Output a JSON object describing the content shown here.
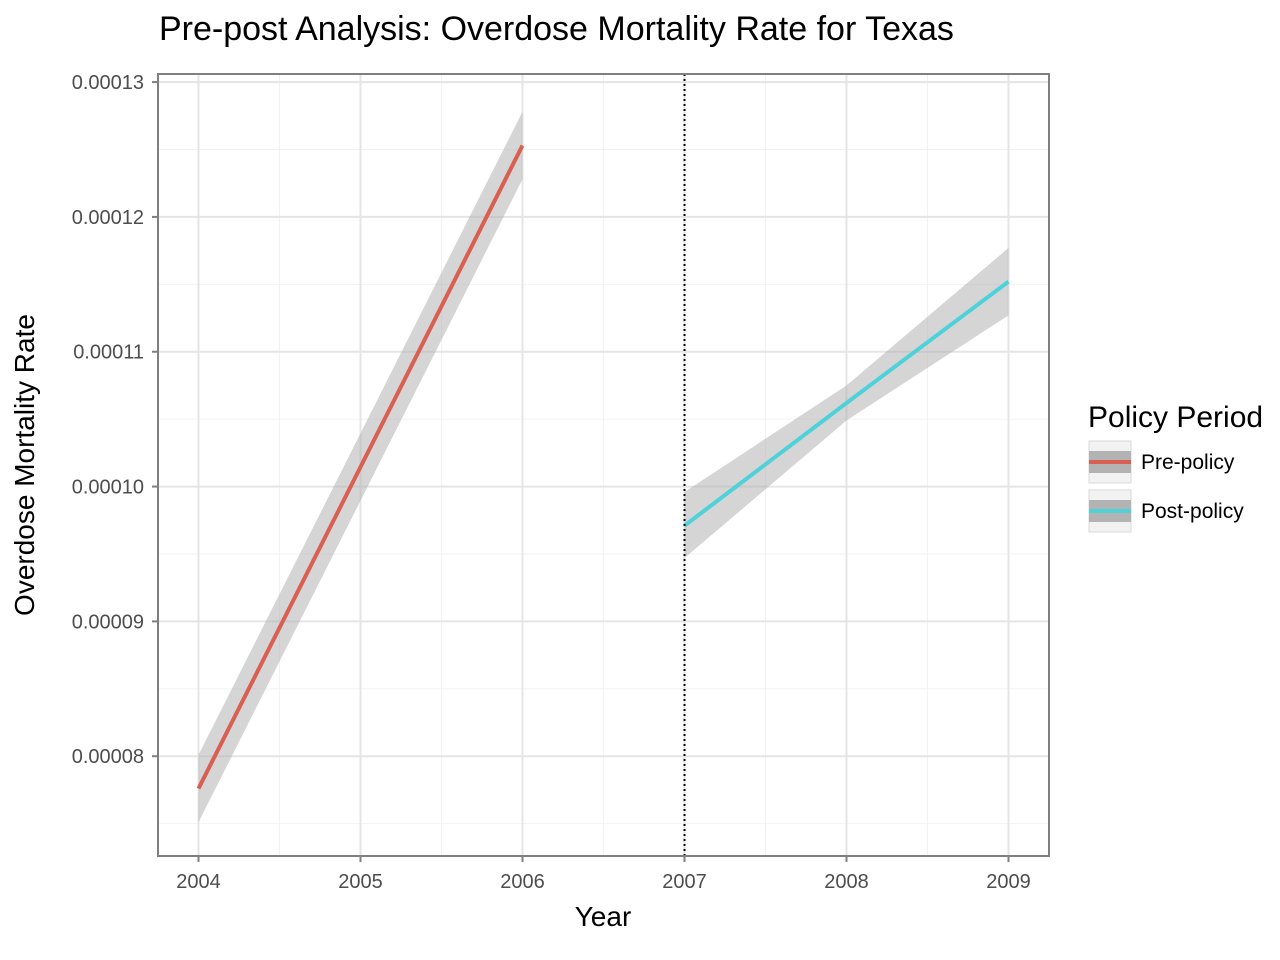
{
  "chart_data": {
    "type": "line",
    "title": "Pre-post Analysis: Overdose Mortality Rate for Texas",
    "xlabel": "Year",
    "ylabel": "Overdose Mortality Rate",
    "x_ticks": [
      "2004",
      "2005",
      "2006",
      "2007",
      "2008",
      "2009"
    ],
    "y_ticks": [
      "0.00008",
      "0.00009",
      "0.00010",
      "0.00011",
      "0.00012",
      "0.00013"
    ],
    "xlim": [
      2003.75,
      2009.25
    ],
    "ylim": [
      7.26e-05,
      0.0001306
    ],
    "grid": true,
    "legend": {
      "title": "Policy Period",
      "position": "right"
    },
    "policy_line": {
      "x": 2007,
      "style": "dotted"
    },
    "series": [
      {
        "name": "Pre-policy",
        "color": "#d95f52",
        "x": [
          2004,
          2006
        ],
        "y": [
          7.76e-05,
          0.0001253
        ],
        "ci_lower": [
          7.51e-05,
          0.0001228
        ],
        "ci_upper": [
          8.01e-05,
          0.0001278
        ]
      },
      {
        "name": "Post-policy",
        "color": "#4fd1da",
        "x": [
          2007,
          2008,
          2009
        ],
        "y": [
          9.71e-05,
          0.0001062,
          0.0001152
        ],
        "ci_lower": [
          9.47e-05,
          0.0001049,
          0.0001127
        ],
        "ci_upper": [
          9.96e-05,
          0.0001075,
          0.0001177
        ]
      }
    ],
    "band_color": "#b3b3b3"
  }
}
